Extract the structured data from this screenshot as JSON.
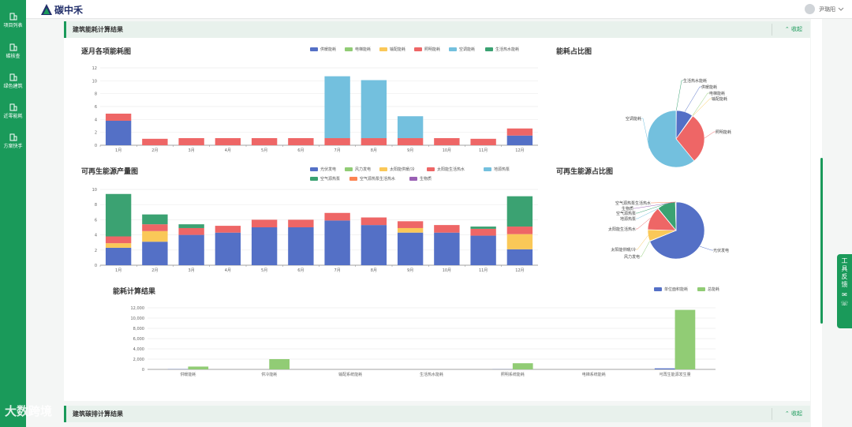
{
  "sidebar": {
    "items": [
      {
        "label": "项目列表",
        "icon": "building-icon"
      },
      {
        "label": "碳核查",
        "icon": "building-icon"
      },
      {
        "label": "绿色建筑",
        "icon": "building-icon"
      },
      {
        "label": "近零能耗",
        "icon": "building-icon"
      },
      {
        "label": "方案快手",
        "icon": "building-icon"
      }
    ]
  },
  "header": {
    "brand": "碳中禾",
    "user_name": "尹璐阳"
  },
  "section1": {
    "title": "建筑能耗计算结果",
    "collapse_label": "收起"
  },
  "section2": {
    "title": "建筑碳排计算结果",
    "collapse_label": "收起"
  },
  "float_tool": {
    "label": "工具反馈"
  },
  "watermark": "大数跨境",
  "colors": {
    "brand": "#1a9a5a",
    "blue": "#5470c6",
    "green": "#91cc75",
    "yellow": "#fac858",
    "red": "#ee6666",
    "lightblue": "#73c0de",
    "darkgreen": "#3ba272",
    "orange": "#fc8452",
    "purple": "#9a60b4"
  },
  "chart_data": [
    {
      "id": "monthly",
      "type": "bar",
      "title": "逐月各项能耗图",
      "categories": [
        "1月",
        "2月",
        "3月",
        "4月",
        "5月",
        "6月",
        "7月",
        "8月",
        "9月",
        "10月",
        "11月",
        "12月"
      ],
      "ylim": [
        0,
        12
      ],
      "yticks": [
        0,
        2,
        4,
        6,
        8,
        10,
        12
      ],
      "series": [
        {
          "name": "供暖能耗",
          "color": "#5470c6",
          "values": [
            3.8,
            0,
            0,
            0,
            0,
            0,
            0,
            0,
            0,
            0,
            0,
            1.5
          ]
        },
        {
          "name": "电梯能耗",
          "color": "#91cc75",
          "values": [
            0,
            0,
            0,
            0,
            0,
            0,
            0,
            0,
            0,
            0,
            0,
            0
          ]
        },
        {
          "name": "输配能耗",
          "color": "#fac858",
          "values": [
            0,
            0,
            0,
            0,
            0,
            0,
            0,
            0,
            0,
            0,
            0,
            0
          ]
        },
        {
          "name": "照明能耗",
          "color": "#ee6666",
          "values": [
            1.1,
            1.0,
            1.1,
            1.1,
            1.1,
            1.1,
            1.1,
            1.1,
            1.1,
            1.1,
            1.0,
            1.1
          ]
        },
        {
          "name": "空调能耗",
          "color": "#73c0de",
          "values": [
            0,
            0,
            0,
            0,
            0,
            0,
            9.6,
            9.0,
            3.4,
            0,
            0,
            0
          ]
        },
        {
          "name": "生活热水能耗",
          "color": "#3ba272",
          "values": [
            0,
            0,
            0,
            0,
            0,
            0,
            0,
            0,
            0,
            0,
            0,
            0
          ]
        }
      ]
    },
    {
      "id": "energy-share",
      "type": "pie",
      "title": "能耗占比图",
      "slices": [
        {
          "name": "生活热水能耗",
          "value": 0.2,
          "color": "#3ba272"
        },
        {
          "name": "供暖能耗",
          "value": 9.5,
          "color": "#5470c6"
        },
        {
          "name": "电梯能耗",
          "value": 0.2,
          "color": "#91cc75"
        },
        {
          "name": "输配能耗",
          "value": 0.2,
          "color": "#fac858"
        },
        {
          "name": "照明能耗",
          "value": 29,
          "color": "#ee6666"
        },
        {
          "name": "空调能耗",
          "value": 61,
          "color": "#73c0de"
        }
      ]
    },
    {
      "id": "renewable",
      "type": "bar",
      "title": "可再生能源产量图",
      "categories": [
        "1月",
        "2月",
        "3月",
        "4月",
        "5月",
        "6月",
        "7月",
        "8月",
        "9月",
        "10月",
        "11月",
        "12月"
      ],
      "ylim": [
        0,
        10
      ],
      "yticks": [
        0,
        2,
        4,
        6,
        8,
        10
      ],
      "series": [
        {
          "name": "光伏发电",
          "color": "#5470c6",
          "values": [
            2.3,
            3.1,
            4.0,
            4.3,
            5.0,
            5.0,
            5.9,
            5.3,
            4.3,
            4.3,
            3.9,
            2.1
          ]
        },
        {
          "name": "风力发电",
          "color": "#91cc75",
          "values": [
            0,
            0,
            0,
            0,
            0,
            0,
            0,
            0,
            0,
            0,
            0,
            0
          ]
        },
        {
          "name": "太阳能供暖/冷",
          "color": "#fac858",
          "values": [
            0.6,
            1.4,
            0,
            0,
            0,
            0,
            0,
            0,
            0.6,
            0,
            0,
            2.0
          ]
        },
        {
          "name": "太阳能生活热水",
          "color": "#ee6666",
          "values": [
            0.9,
            0.9,
            0.9,
            0.9,
            1.0,
            1.0,
            1.0,
            1.0,
            0.9,
            1.0,
            0.9,
            1.0
          ]
        },
        {
          "name": "地源热泵",
          "color": "#73c0de",
          "values": [
            0,
            0,
            0,
            0,
            0,
            0,
            0,
            0,
            0,
            0,
            0,
            0
          ]
        },
        {
          "name": "空气源热泵",
          "color": "#3ba272",
          "values": [
            5.6,
            1.3,
            0.5,
            0,
            0,
            0,
            0,
            0,
            0,
            0,
            0.3,
            4.0
          ]
        },
        {
          "name": "空气源热泵生活热水",
          "color": "#fc8452",
          "values": [
            0,
            0,
            0,
            0,
            0,
            0,
            0,
            0,
            0,
            0,
            0,
            0
          ]
        },
        {
          "name": "生物质",
          "color": "#9a60b4",
          "values": [
            0,
            0,
            0,
            0,
            0,
            0,
            0,
            0,
            0,
            0,
            0,
            0
          ]
        }
      ]
    },
    {
      "id": "renewable-share",
      "type": "pie",
      "title": "可再生能源占比图",
      "slices": [
        {
          "name": "光伏发电",
          "value": 69,
          "color": "#5470c6"
        },
        {
          "name": "风力发电",
          "value": 0.2,
          "color": "#91cc75"
        },
        {
          "name": "太阳能供暖/冷",
          "value": 6.5,
          "color": "#fac858"
        },
        {
          "name": "太阳能生活热水",
          "value": 13.5,
          "color": "#ee6666"
        },
        {
          "name": "地源热泵",
          "value": 0.2,
          "color": "#73c0de"
        },
        {
          "name": "空气源热泵",
          "value": 10.5,
          "color": "#3ba272"
        },
        {
          "name": "生物质",
          "value": 0.2,
          "color": "#9a60b4"
        },
        {
          "name": "空气源热泵生活热水",
          "value": 0.2,
          "color": "#fc8452"
        }
      ]
    },
    {
      "id": "calc-result",
      "type": "bar",
      "title": "能耗计算结果",
      "categories": [
        "供暖能耗",
        "供冷能耗",
        "输配系统能耗",
        "生活热水能耗",
        "照明系统能耗",
        "电梯系统能耗",
        "可再生能源发生量"
      ],
      "ylim": [
        0,
        12000
      ],
      "yticks": [
        0,
        2000,
        4000,
        6000,
        8000,
        10000,
        12000
      ],
      "ytick_labels": [
        "0",
        "2,000",
        "4,000",
        "6,000",
        "8,000",
        "10,000",
        "12,000"
      ],
      "series": [
        {
          "name": "单位面积能耗",
          "color": "#5470c6",
          "values": [
            40,
            0,
            0,
            0,
            25,
            0,
            200
          ]
        },
        {
          "name": "总能耗",
          "color": "#91cc75",
          "values": [
            550,
            2000,
            0,
            0,
            1200,
            0,
            11600
          ]
        }
      ]
    }
  ]
}
